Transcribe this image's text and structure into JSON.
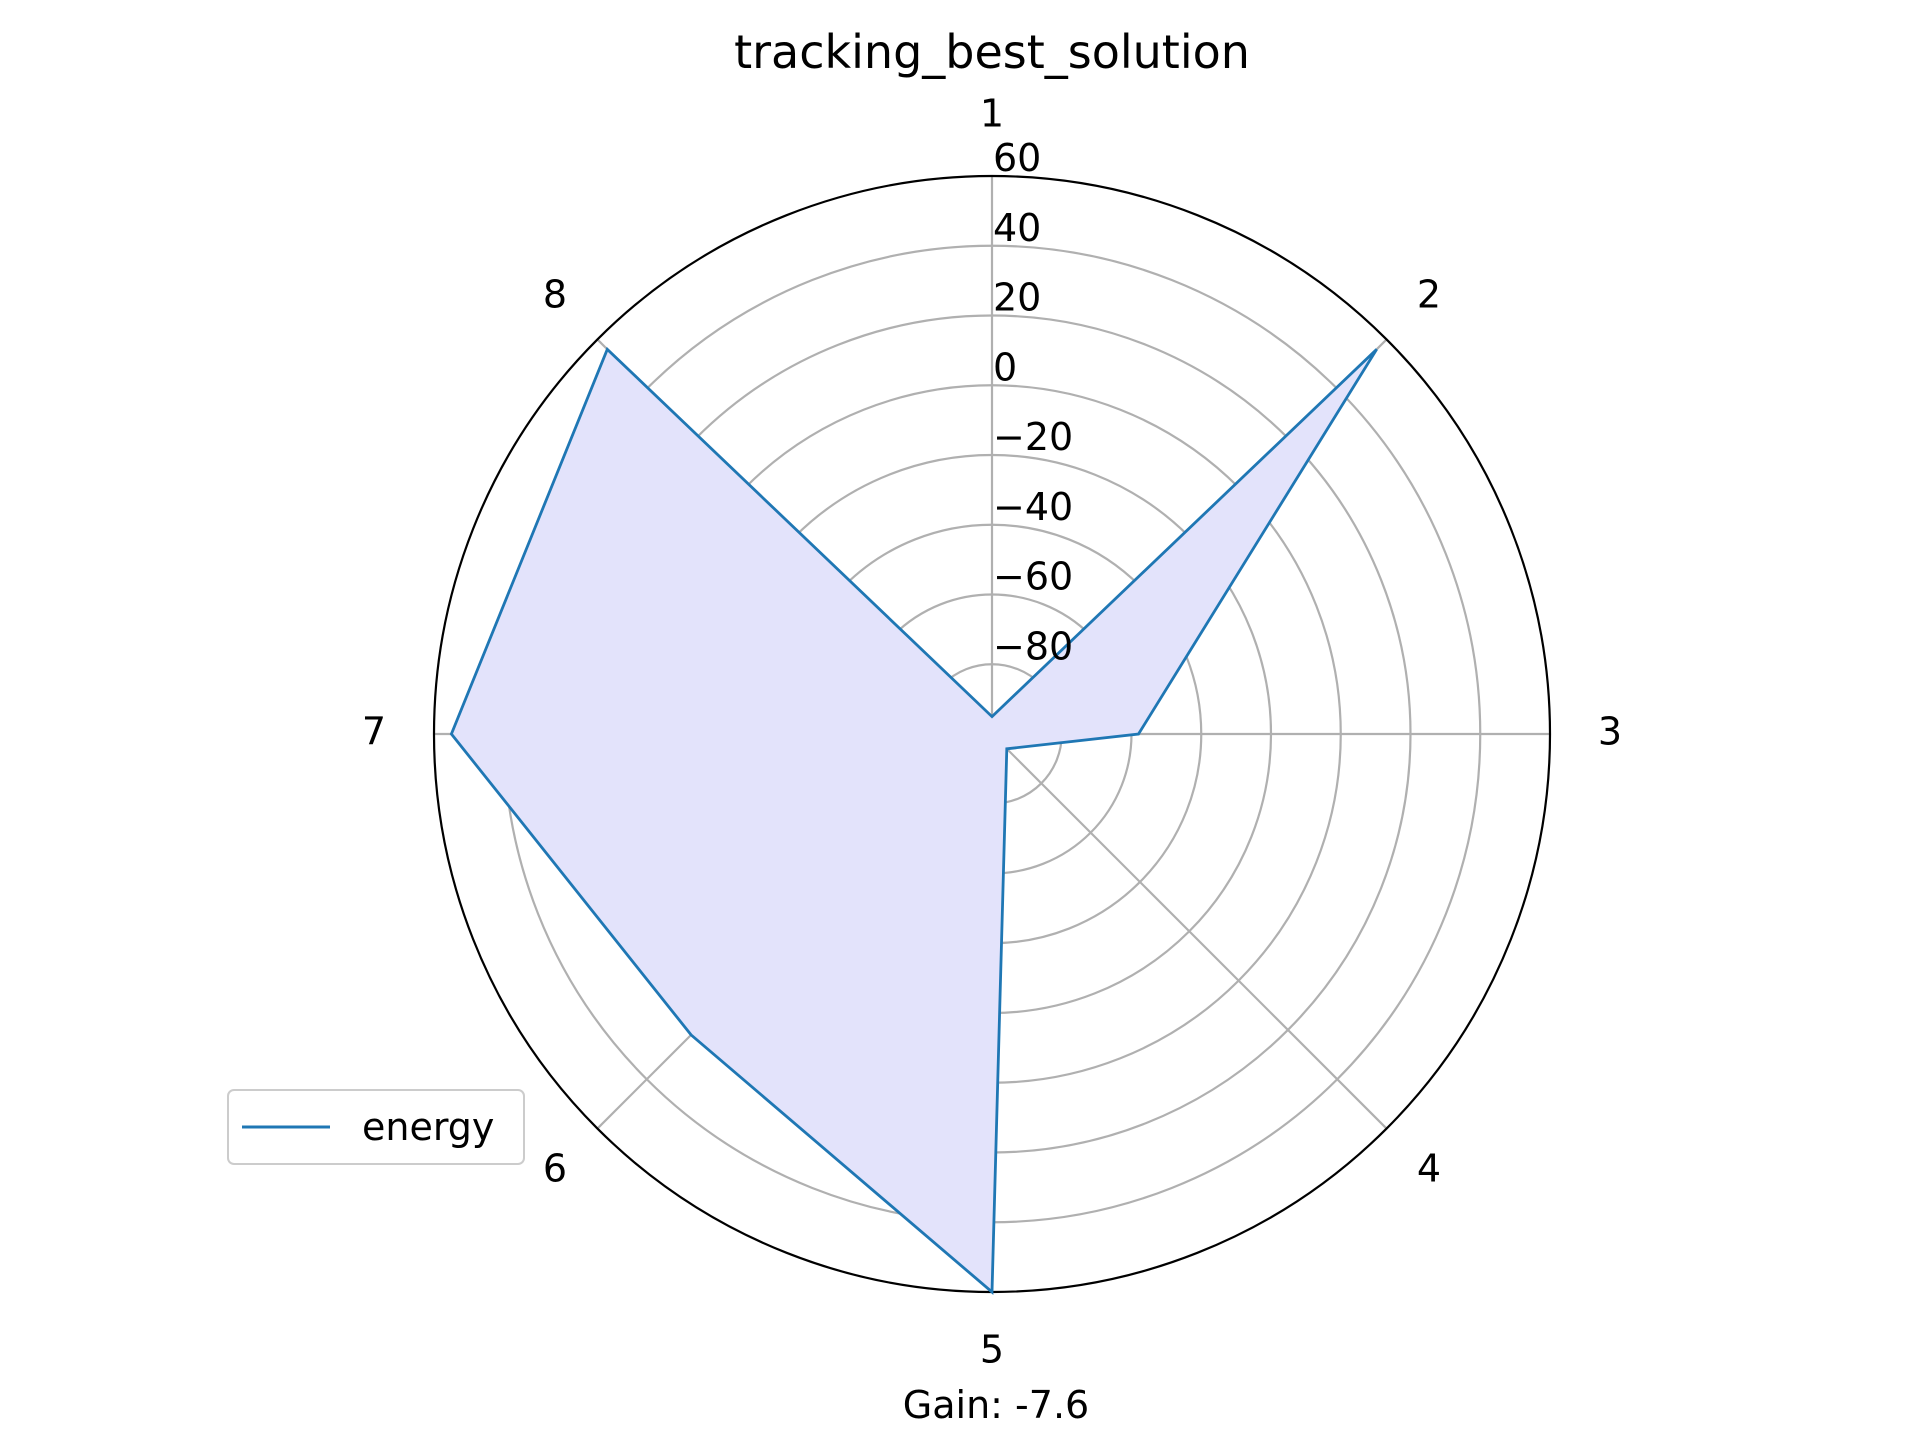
{
  "chart_data": {
    "type": "radar",
    "title": "tracking_best_solution",
    "categories": [
      "1",
      "2",
      "3",
      "4",
      "5",
      "6",
      "7",
      "8"
    ],
    "series": [
      {
        "name": "energy",
        "values": [
          -95,
          56,
          -58,
          -94,
          60,
          22,
          55,
          56
        ],
        "line_color": "#1f77b4",
        "fill_color": "#e3e3fb"
      }
    ],
    "rlim": [
      -100,
      60
    ],
    "rticks": [
      -80,
      -60,
      -40,
      -20,
      0,
      20,
      40,
      60
    ],
    "rtick_labels": [
      "−80",
      "−60",
      "−40",
      "−20",
      "0",
      "20",
      "40",
      "60"
    ],
    "grid": true,
    "legend_position": "lower-left",
    "footer": "Gain: -7.6",
    "colors": {
      "grid": "#b0b0b0",
      "outer_ring": "#000000",
      "text": "#000000"
    }
  }
}
